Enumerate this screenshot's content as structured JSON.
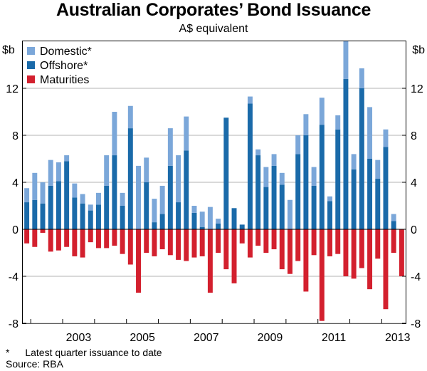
{
  "chart_data": {
    "type": "bar",
    "title": "Australian Corporates’ Bond Issuance",
    "subtitle": "A$ equivalent",
    "ylabel_left": "$b",
    "ylabel_right": "$b",
    "ylim": [
      -8,
      16
    ],
    "yticks": [
      -8,
      -4,
      0,
      4,
      8,
      12
    ],
    "ytick_labels": [
      "-8",
      "-4",
      "0",
      "4",
      "8",
      "12"
    ],
    "x_start_year": 2001.75,
    "x_end_year": 2013.75,
    "xtick_labels": [
      {
        "label": "2003",
        "year": 2003
      },
      {
        "label": "2005",
        "year": 2005
      },
      {
        "label": "2007",
        "year": 2007
      },
      {
        "label": "2009",
        "year": 2009
      },
      {
        "label": "2011",
        "year": 2011
      },
      {
        "label": "2013",
        "year": 2013
      }
    ],
    "legend": [
      {
        "key": "domestic",
        "label": "Domestic*",
        "color": "#7ba7d9"
      },
      {
        "key": "offshore",
        "label": "Offshore*",
        "color": "#1a6aa9"
      },
      {
        "key": "maturities",
        "label": "Maturities",
        "color": "#d3202e"
      }
    ],
    "stack_order": [
      "offshore",
      "domestic"
    ],
    "quarters": [
      "2001Q4",
      "2002Q1",
      "2002Q2",
      "2002Q3",
      "2002Q4",
      "2003Q1",
      "2003Q2",
      "2003Q3",
      "2003Q4",
      "2004Q1",
      "2004Q2",
      "2004Q3",
      "2004Q4",
      "2005Q1",
      "2005Q2",
      "2005Q3",
      "2005Q4",
      "2006Q1",
      "2006Q2",
      "2006Q3",
      "2006Q4",
      "2007Q1",
      "2007Q2",
      "2007Q3",
      "2007Q4",
      "2008Q1",
      "2008Q2",
      "2008Q3",
      "2008Q4",
      "2009Q1",
      "2009Q2",
      "2009Q3",
      "2009Q4",
      "2010Q1",
      "2010Q2",
      "2010Q3",
      "2010Q4",
      "2011Q1",
      "2011Q2",
      "2011Q3",
      "2011Q4",
      "2012Q1",
      "2012Q2",
      "2012Q3",
      "2012Q4",
      "2013Q1",
      "2013Q2",
      "2013Q3"
    ],
    "series": [
      {
        "name": "Offshore*",
        "key": "offshore",
        "color": "#1a6aa9",
        "values": [
          2.3,
          2.5,
          2.2,
          3.7,
          4.1,
          5.8,
          2.7,
          2.2,
          1.6,
          2.1,
          3.7,
          6.3,
          2.0,
          8.6,
          0.0,
          4.0,
          0.6,
          1.3,
          5.4,
          2.3,
          6.7,
          1.4,
          0.2,
          0.0,
          0.5,
          9.5,
          1.8,
          0.4,
          10.7,
          6.3,
          3.6,
          5.4,
          3.8,
          0.0,
          6.4,
          8.0,
          3.7,
          8.9,
          2.4,
          8.5,
          12.8,
          5.1,
          12.0,
          6.0,
          4.3,
          7.0,
          0.7,
          0.0
        ]
      },
      {
        "name": "Domestic*",
        "key": "domestic",
        "color": "#7ba7d9",
        "values": [
          1.2,
          2.3,
          1.8,
          2.2,
          1.6,
          0.5,
          1.2,
          0.8,
          0.5,
          1.0,
          2.6,
          3.7,
          1.1,
          1.9,
          5.4,
          2.1,
          2.0,
          2.4,
          3.2,
          4.0,
          2.9,
          0.6,
          1.3,
          1.9,
          0.4,
          0.0,
          0.0,
          0.0,
          0.6,
          0.5,
          1.7,
          1.0,
          1.0,
          2.5,
          1.6,
          1.8,
          1.6,
          2.3,
          0.4,
          1.2,
          3.2,
          1.3,
          1.7,
          4.4,
          1.6,
          1.5,
          0.6,
          0.0
        ]
      },
      {
        "name": "Maturities",
        "key": "maturities",
        "color": "#d3202e",
        "values": [
          -1.2,
          -1.5,
          -0.3,
          -1.9,
          -1.8,
          -1.5,
          -2.3,
          -2.4,
          -1.1,
          -1.6,
          -1.6,
          -1.4,
          -2.1,
          -3.0,
          -5.4,
          -2.0,
          -2.3,
          -1.7,
          -2.2,
          -2.6,
          -2.7,
          -2.4,
          -2.3,
          -5.4,
          -2.0,
          -3.4,
          -4.6,
          -1.2,
          -2.4,
          -1.4,
          -2.0,
          -1.7,
          -3.4,
          -3.8,
          -2.7,
          -5.3,
          -2.2,
          -7.8,
          -2.3,
          -2.1,
          -4.0,
          -4.2,
          -3.3,
          -5.1,
          -2.5,
          -6.8,
          -2.0,
          -4.0
        ]
      }
    ]
  },
  "footnote": {
    "marker": "*",
    "text": "Latest quarter issuance to date",
    "source": "Source: RBA"
  }
}
